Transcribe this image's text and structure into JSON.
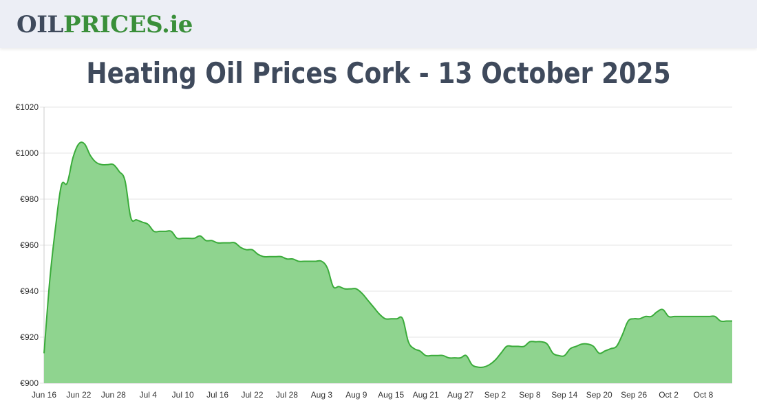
{
  "header": {
    "logo_part1": "OIL",
    "logo_part2": "PRICES",
    "logo_part3": ".ie"
  },
  "title": "Heating Oil Prices Cork - 13 October 2025",
  "colors": {
    "line": "#3aab3a",
    "fill": "#8fd48f",
    "grid": "#e6e6e6",
    "text": "#3f4a5c"
  },
  "chart_data": {
    "type": "area",
    "xlabel": "",
    "ylabel": "",
    "ylim": [
      900,
      1020
    ],
    "yticks": [
      "€900",
      "€920",
      "€940",
      "€960",
      "€980",
      "€1000",
      "€1020"
    ],
    "ytick_values": [
      900,
      920,
      940,
      960,
      980,
      1000,
      1020
    ],
    "xticks": [
      "Jun 16",
      "Jun 22",
      "Jun 28",
      "Jul 4",
      "Jul 10",
      "Jul 16",
      "Jul 22",
      "Jul 28",
      "Aug 3",
      "Aug 9",
      "Aug 15",
      "Aug 21",
      "Aug 27",
      "Sep 2",
      "Sep 8",
      "Sep 14",
      "Sep 20",
      "Sep 26",
      "Oct 2",
      "Oct 8"
    ],
    "grid": true,
    "legend": "none",
    "series": [
      {
        "values": [
          913,
          945,
          968,
          986,
          987,
          998,
          1004,
          1004,
          999,
          996,
          995,
          995,
          995,
          992,
          988,
          972,
          971,
          970,
          969,
          966,
          966,
          966,
          966,
          963,
          963,
          963,
          963,
          964,
          962,
          962,
          961,
          961,
          961,
          961,
          959,
          958,
          958,
          956,
          955,
          955,
          955,
          955,
          954,
          954,
          953,
          953,
          953,
          953,
          953,
          950,
          942,
          942,
          941,
          941,
          941,
          939,
          936,
          933,
          930,
          928,
          928,
          928,
          928,
          918,
          915,
          914,
          912,
          912,
          912,
          912,
          911,
          911,
          911,
          912,
          908,
          907,
          907,
          908,
          910,
          913,
          916,
          916,
          916,
          916,
          918,
          918,
          918,
          917,
          913,
          912,
          912,
          915,
          916,
          917,
          917,
          916,
          913,
          914,
          915,
          916,
          921,
          927,
          928,
          928,
          929,
          929,
          931,
          932,
          929,
          929,
          929,
          929,
          929,
          929,
          929,
          929,
          929,
          927,
          927,
          927
        ]
      }
    ]
  }
}
